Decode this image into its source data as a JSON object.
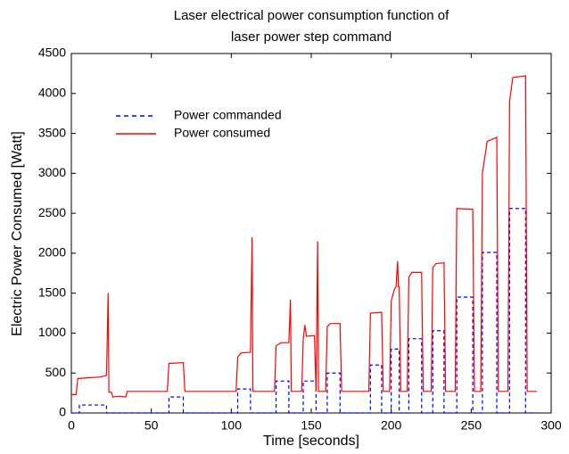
{
  "chart_data": {
    "type": "line",
    "title": [
      "Laser electrical power consumption function of",
      "laser power step command"
    ],
    "x_label": "Time [seconds]",
    "y_label": "Electric Power Consumed [Watt]",
    "xlim": [
      0,
      300
    ],
    "xticks": [
      0,
      50,
      100,
      150,
      200,
      250,
      300
    ],
    "ylim": [
      0,
      4500
    ],
    "yticks": [
      0,
      500,
      1000,
      1500,
      2000,
      2500,
      3000,
      3500,
      4000,
      4500
    ],
    "grid": false,
    "legend": "upper left",
    "series": [
      {
        "name": "Power commanded",
        "color": "#0000ff",
        "dash": true,
        "x": [
          0,
          5,
          5,
          22,
          22,
          61,
          61,
          70,
          70,
          104,
          104,
          112,
          112,
          128,
          128,
          136,
          136,
          145,
          145,
          153,
          153,
          160,
          160,
          168,
          168,
          187,
          187,
          194,
          194,
          200,
          200,
          205,
          205,
          211,
          211,
          219,
          219,
          226,
          226,
          233,
          233,
          241,
          241,
          251,
          251,
          257,
          257,
          266,
          266,
          274,
          274,
          284,
          284,
          291
        ],
        "values": [
          0,
          0,
          100,
          100,
          0,
          0,
          200,
          200,
          0,
          0,
          300,
          300,
          0,
          0,
          400,
          400,
          0,
          0,
          400,
          400,
          0,
          0,
          500,
          500,
          0,
          0,
          600,
          600,
          0,
          0,
          800,
          800,
          0,
          0,
          930,
          930,
          0,
          0,
          1030,
          1030,
          0,
          0,
          1450,
          1450,
          0,
          0,
          2010,
          2010,
          0,
          0,
          2560,
          2560,
          0,
          0
        ]
      },
      {
        "name": "Power consumed",
        "color": "#ff0000",
        "dash": false,
        "x": [
          0,
          3,
          4,
          10,
          18,
          22,
          23,
          23.5,
          25,
          26,
          30,
          34,
          35,
          60,
          61,
          70,
          71,
          103,
          104,
          106,
          112,
          113,
          113.5,
          127,
          128,
          131,
          136,
          137,
          137.5,
          144,
          145,
          146,
          147,
          152,
          153,
          154,
          154.5,
          159,
          160,
          162,
          168,
          169,
          186,
          187,
          194,
          195,
          199,
          200,
          202,
          203,
          204,
          204.5,
          205,
          206,
          210,
          211,
          213,
          219,
          220,
          225,
          226,
          228,
          233,
          234,
          240,
          241,
          251,
          252,
          256,
          257,
          260,
          266,
          267,
          273,
          274,
          276,
          284,
          285,
          291
        ],
        "values": [
          230,
          230,
          430,
          440,
          450,
          470,
          1500,
          260,
          260,
          200,
          210,
          200,
          270,
          270,
          620,
          630,
          270,
          270,
          700,
          750,
          760,
          2200,
          270,
          270,
          840,
          880,
          880,
          1420,
          270,
          270,
          920,
          1100,
          960,
          970,
          270,
          2150,
          270,
          270,
          1080,
          1120,
          1120,
          270,
          270,
          1250,
          1260,
          270,
          270,
          1400,
          1550,
          1580,
          1900,
          1580,
          1580,
          270,
          270,
          1700,
          1760,
          1760,
          270,
          270,
          1820,
          1870,
          1880,
          270,
          270,
          2560,
          2550,
          270,
          270,
          3000,
          3400,
          3450,
          270,
          270,
          3900,
          4200,
          4220,
          270,
          270
        ]
      }
    ]
  }
}
